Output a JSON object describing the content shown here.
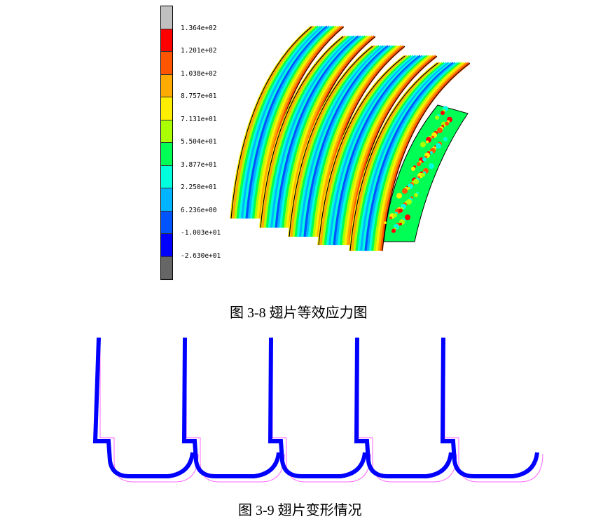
{
  "figure_3_8": {
    "caption": "图 3-8  翅片等效应力图",
    "legend": {
      "colors": [
        "#c0c0c0",
        "#ff0000",
        "#ff5500",
        "#ffaa00",
        "#ffee00",
        "#aaff00",
        "#00ff55",
        "#00ffdd",
        "#00b4ff",
        "#0055ff",
        "#0000ff",
        "#666666"
      ],
      "labels": [
        "1.364e+02",
        "1.201e+02",
        "1.038e+02",
        "8.757e+01",
        "7.131e+01",
        "5.504e+01",
        "3.877e+01",
        "2.250e+01",
        "6.236e+00",
        "-1.003e+01",
        "-2.630e+01"
      ]
    }
  },
  "figure_3_9": {
    "caption": "图 3-9  翅片变形情况",
    "deformed_color": "#0000ff",
    "original_color": "#ff66ff"
  }
}
